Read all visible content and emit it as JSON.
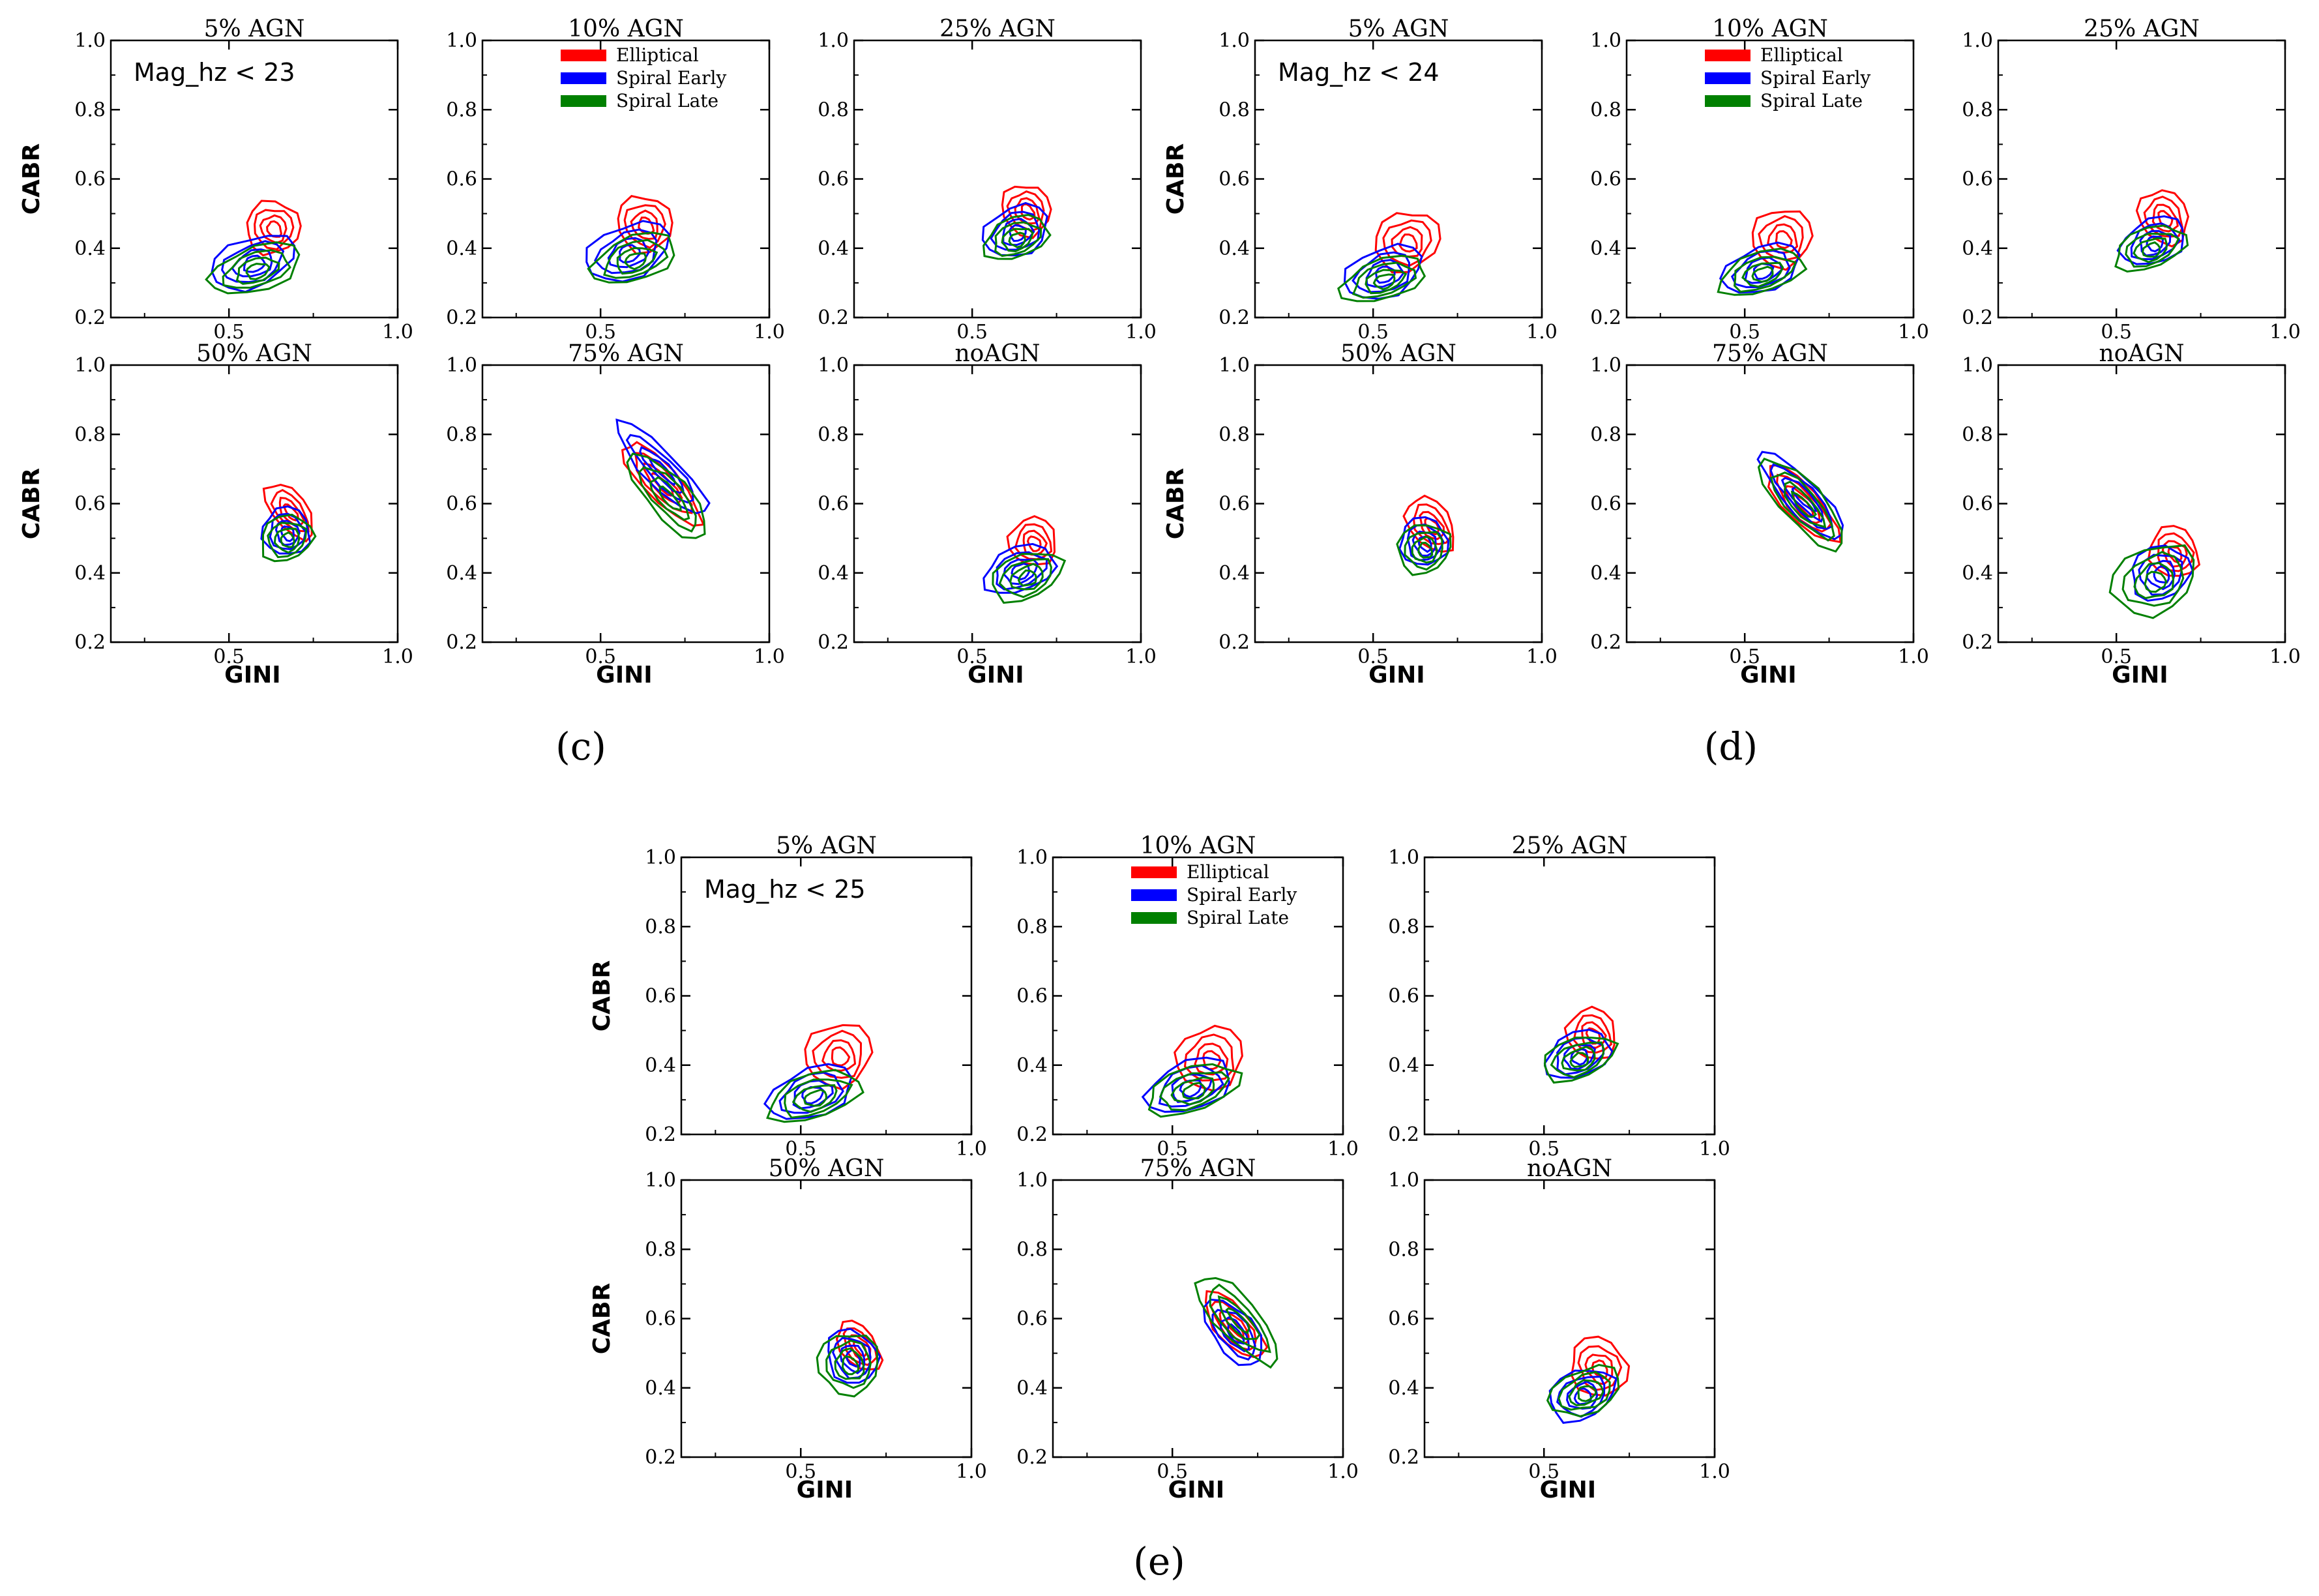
{
  "colors": {
    "elliptical": "#ff0000",
    "spiral_early": "#0000ff",
    "spiral_late": "#008000",
    "axis": "#000000"
  },
  "figure_labels": {
    "c": "(c)",
    "d": "(d)",
    "e": "(e)"
  },
  "legend": {
    "entries": [
      {
        "name": "Elliptical",
        "color": "#ff0000"
      },
      {
        "name": "Spiral Early",
        "color": "#0000ff"
      },
      {
        "name": "Spiral Late",
        "color": "#008000"
      }
    ]
  },
  "chart_data": [
    {
      "group": "c",
      "annotation": "Mag_hz < 23",
      "type": "contour",
      "xlabel": "GINI",
      "ylabel": "CABR",
      "xlim": [
        0.15,
        1.0
      ],
      "ylim": [
        0.2,
        1.0
      ],
      "xticks": [
        "0.5",
        "1.0"
      ],
      "yticks": [
        "0.2",
        "0.4",
        "0.6",
        "0.8",
        "1.0"
      ],
      "panels": [
        {
          "title": "5% AGN",
          "contours": {
            "elliptical": {
              "cx": 0.63,
              "cy": 0.46,
              "sx": 0.08,
              "sy": 0.11
            },
            "spiral_early": {
              "cx": 0.57,
              "cy": 0.36,
              "sx": 0.13,
              "sy": 0.1
            },
            "spiral_late": {
              "cx": 0.58,
              "cy": 0.34,
              "sx": 0.14,
              "sy": 0.09
            }
          }
        },
        {
          "title": "10% AGN",
          "contours": {
            "elliptical": {
              "cx": 0.63,
              "cy": 0.47,
              "sx": 0.08,
              "sy": 0.12
            },
            "spiral_early": {
              "cx": 0.58,
              "cy": 0.39,
              "sx": 0.13,
              "sy": 0.11
            },
            "spiral_late": {
              "cx": 0.6,
              "cy": 0.37,
              "sx": 0.13,
              "sy": 0.09
            }
          }
        },
        {
          "title": "25% AGN",
          "contours": {
            "elliptical": {
              "cx": 0.66,
              "cy": 0.51,
              "sx": 0.07,
              "sy": 0.11
            },
            "spiral_early": {
              "cx": 0.63,
              "cy": 0.45,
              "sx": 0.1,
              "sy": 0.1
            },
            "spiral_late": {
              "cx": 0.63,
              "cy": 0.43,
              "sx": 0.1,
              "sy": 0.08
            }
          }
        },
        {
          "title": "50% AGN",
          "contours": {
            "elliptical": {
              "cx": 0.68,
              "cy": 0.58,
              "sx": 0.05,
              "sy": 0.14
            },
            "spiral_early": {
              "cx": 0.67,
              "cy": 0.52,
              "sx": 0.07,
              "sy": 0.1
            },
            "spiral_late": {
              "cx": 0.67,
              "cy": 0.5,
              "sx": 0.08,
              "sy": 0.09
            }
          }
        },
        {
          "title": "75% AGN",
          "contours": {
            "elliptical": {
              "cx": 0.68,
              "cy": 0.66,
              "sx": 0.05,
              "sy": 0.24
            },
            "spiral_early": {
              "cx": 0.68,
              "cy": 0.7,
              "sx": 0.05,
              "sy": 0.28
            },
            "spiral_late": {
              "cx": 0.7,
              "cy": 0.62,
              "sx": 0.06,
              "sy": 0.24
            }
          }
        },
        {
          "title": "noAGN",
          "contours": {
            "elliptical": {
              "cx": 0.68,
              "cy": 0.49,
              "sx": 0.07,
              "sy": 0.1
            },
            "spiral_early": {
              "cx": 0.64,
              "cy": 0.41,
              "sx": 0.11,
              "sy": 0.09
            },
            "spiral_late": {
              "cx": 0.66,
              "cy": 0.39,
              "sx": 0.11,
              "sy": 0.09
            }
          }
        }
      ]
    },
    {
      "group": "d",
      "annotation": "Mag_hz < 24",
      "type": "contour",
      "xlabel": "GINI",
      "ylabel": "CABR",
      "xlim": [
        0.15,
        1.0
      ],
      "ylim": [
        0.2,
        1.0
      ],
      "xticks": [
        "0.5",
        "1.0"
      ],
      "yticks": [
        "0.2",
        "0.4",
        "0.6",
        "0.8",
        "1.0"
      ],
      "panels": [
        {
          "title": "5% AGN",
          "contours": {
            "elliptical": {
              "cx": 0.6,
              "cy": 0.42,
              "sx": 0.1,
              "sy": 0.12
            },
            "spiral_early": {
              "cx": 0.53,
              "cy": 0.33,
              "sx": 0.12,
              "sy": 0.1
            },
            "spiral_late": {
              "cx": 0.53,
              "cy": 0.31,
              "sx": 0.13,
              "sy": 0.08
            }
          }
        },
        {
          "title": "10% AGN",
          "contours": {
            "elliptical": {
              "cx": 0.61,
              "cy": 0.43,
              "sx": 0.09,
              "sy": 0.12
            },
            "spiral_early": {
              "cx": 0.55,
              "cy": 0.34,
              "sx": 0.12,
              "sy": 0.09
            },
            "spiral_late": {
              "cx": 0.55,
              "cy": 0.33,
              "sx": 0.13,
              "sy": 0.08
            }
          }
        },
        {
          "title": "25% AGN",
          "contours": {
            "elliptical": {
              "cx": 0.64,
              "cy": 0.49,
              "sx": 0.07,
              "sy": 0.12
            },
            "spiral_early": {
              "cx": 0.61,
              "cy": 0.42,
              "sx": 0.1,
              "sy": 0.09
            },
            "spiral_late": {
              "cx": 0.6,
              "cy": 0.4,
              "sx": 0.11,
              "sy": 0.08
            }
          }
        },
        {
          "title": "50% AGN",
          "contours": {
            "elliptical": {
              "cx": 0.67,
              "cy": 0.54,
              "sx": 0.06,
              "sy": 0.13
            },
            "spiral_early": {
              "cx": 0.65,
              "cy": 0.49,
              "sx": 0.07,
              "sy": 0.1
            },
            "spiral_late": {
              "cx": 0.65,
              "cy": 0.47,
              "sx": 0.08,
              "sy": 0.1
            }
          }
        },
        {
          "title": "75% AGN",
          "contours": {
            "elliptical": {
              "cx": 0.67,
              "cy": 0.6,
              "sx": 0.05,
              "sy": 0.22
            },
            "spiral_early": {
              "cx": 0.67,
              "cy": 0.62,
              "sx": 0.05,
              "sy": 0.26
            },
            "spiral_late": {
              "cx": 0.67,
              "cy": 0.6,
              "sx": 0.06,
              "sy": 0.26
            }
          }
        },
        {
          "title": "noAGN",
          "contours": {
            "elliptical": {
              "cx": 0.67,
              "cy": 0.46,
              "sx": 0.07,
              "sy": 0.11
            },
            "spiral_early": {
              "cx": 0.63,
              "cy": 0.4,
              "sx": 0.09,
              "sy": 0.11
            },
            "spiral_late": {
              "cx": 0.61,
              "cy": 0.38,
              "sx": 0.13,
              "sy": 0.14
            }
          }
        }
      ]
    },
    {
      "group": "e",
      "annotation": "Mag_hz < 25",
      "type": "contour",
      "xlabel": "GINI",
      "ylabel": "CABR",
      "xlim": [
        0.15,
        1.0
      ],
      "ylim": [
        0.2,
        1.0
      ],
      "xticks": [
        "0.5",
        "1.0"
      ],
      "yticks": [
        "0.2",
        "0.4",
        "0.6",
        "0.8",
        "1.0"
      ],
      "panels": [
        {
          "title": "5% AGN",
          "contours": {
            "elliptical": {
              "cx": 0.61,
              "cy": 0.43,
              "sx": 0.1,
              "sy": 0.13
            },
            "spiral_early": {
              "cx": 0.53,
              "cy": 0.32,
              "sx": 0.13,
              "sy": 0.1
            },
            "spiral_late": {
              "cx": 0.54,
              "cy": 0.31,
              "sx": 0.14,
              "sy": 0.09
            }
          }
        },
        {
          "title": "10% AGN",
          "contours": {
            "elliptical": {
              "cx": 0.61,
              "cy": 0.42,
              "sx": 0.1,
              "sy": 0.13
            },
            "spiral_early": {
              "cx": 0.55,
              "cy": 0.34,
              "sx": 0.13,
              "sy": 0.1
            },
            "spiral_late": {
              "cx": 0.56,
              "cy": 0.33,
              "sx": 0.14,
              "sy": 0.09
            }
          }
        },
        {
          "title": "25% AGN",
          "contours": {
            "elliptical": {
              "cx": 0.64,
              "cy": 0.49,
              "sx": 0.07,
              "sy": 0.11
            },
            "spiral_early": {
              "cx": 0.6,
              "cy": 0.43,
              "sx": 0.1,
              "sy": 0.09
            },
            "spiral_late": {
              "cx": 0.6,
              "cy": 0.42,
              "sx": 0.11,
              "sy": 0.08
            }
          }
        },
        {
          "title": "50% AGN",
          "contours": {
            "elliptical": {
              "cx": 0.67,
              "cy": 0.52,
              "sx": 0.05,
              "sy": 0.12
            },
            "spiral_early": {
              "cx": 0.65,
              "cy": 0.49,
              "sx": 0.07,
              "sy": 0.12
            },
            "spiral_late": {
              "cx": 0.64,
              "cy": 0.47,
              "sx": 0.09,
              "sy": 0.13
            }
          }
        },
        {
          "title": "75% AGN",
          "contours": {
            "elliptical": {
              "cx": 0.68,
              "cy": 0.58,
              "sx": 0.05,
              "sy": 0.18
            },
            "spiral_early": {
              "cx": 0.68,
              "cy": 0.56,
              "sx": 0.06,
              "sy": 0.17
            },
            "spiral_late": {
              "cx": 0.69,
              "cy": 0.6,
              "sx": 0.06,
              "sy": 0.25
            }
          }
        },
        {
          "title": "noAGN",
          "contours": {
            "elliptical": {
              "cx": 0.66,
              "cy": 0.46,
              "sx": 0.08,
              "sy": 0.13
            },
            "spiral_early": {
              "cx": 0.61,
              "cy": 0.38,
              "sx": 0.1,
              "sy": 0.1
            },
            "spiral_late": {
              "cx": 0.62,
              "cy": 0.39,
              "sx": 0.11,
              "sy": 0.09
            }
          }
        }
      ]
    }
  ]
}
